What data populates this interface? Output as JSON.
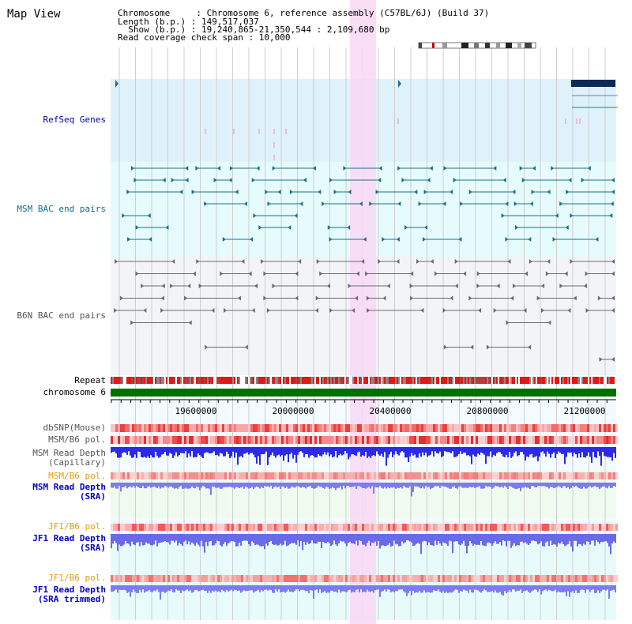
{
  "title": "Map View",
  "header": {
    "line1": "Chromosome     : Chromosome 6, reference assembly (C57BL/6J) (Build 37)",
    "line2": "Length (b.p.) : 149,517,037",
    "line3": "  Show (b.p.) : 19,240,865-21,350,544 : 2,109,680 bp",
    "line4": "Read coverage check span : 10,000"
  },
  "tracks": {
    "refseq": "RefSeq Genes",
    "msm_bac": "MSM BAC end pairs",
    "b6n_bac": "B6N BAC end pairs",
    "repeat": "Repeat",
    "chromosome": "chromosome 6",
    "dbsnp": "dbSNP(Mouse)",
    "msmb6_pol": "MSM/B6 pol.",
    "msm_depth_cap_1": "MSM Read Depth",
    "msm_depth_cap_2": "(Capillary)",
    "msmb6_pol_2": "MSM/B6 pol.",
    "msm_depth_sra_1": "MSM Read Depth",
    "msm_depth_sra_2": "(SRA)",
    "jf1b6_pol": "JF1/B6 pol.",
    "jf1_depth_sra_1": "JF1 Read Depth",
    "jf1_depth_sra_2": "(SRA)",
    "jf1b6_pol_2": "JF1/B6 pol.",
    "jf1_depth_trim_1": "JF1 Read Depth",
    "jf1_depth_trim_2": "(SRA trimmed)"
  },
  "axis_ticks": [
    "19600000",
    "20000000",
    "20400000",
    "20800000",
    "21200000"
  ],
  "colors": {
    "refseq_bg": "#dff1fb",
    "msm_bg": "#e6fbfb",
    "b6n_bg": "#f2f4f8",
    "highlight": "#f8d8f4",
    "chromosome": "#007000",
    "msm_feature": "#1d6f8a",
    "b6n_feature": "#6b6b6b",
    "depth_cap": "#2a2ae8",
    "depth_sra": "#7c7cf0"
  }
}
